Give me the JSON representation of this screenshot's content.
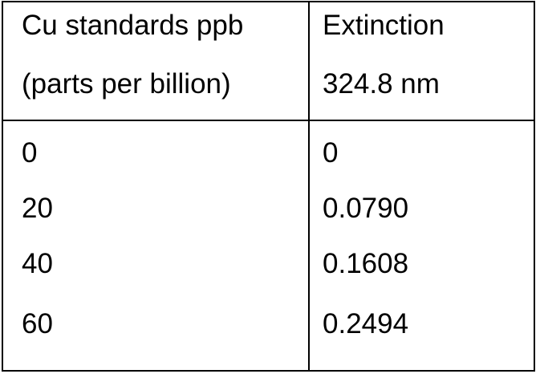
{
  "table": {
    "header": {
      "col1_line1": "Cu standards ppb",
      "col1_line2": "(parts per billion)",
      "col2_line1": "Extinction",
      "col2_line2": "324.8 nm"
    },
    "rows": [
      {
        "ppb": "0",
        "extinction": "0"
      },
      {
        "ppb": "20",
        "extinction": "0.0790"
      },
      {
        "ppb": "40",
        "extinction": "0.1608"
      },
      {
        "ppb": "60",
        "extinction": "0.2494"
      }
    ]
  }
}
